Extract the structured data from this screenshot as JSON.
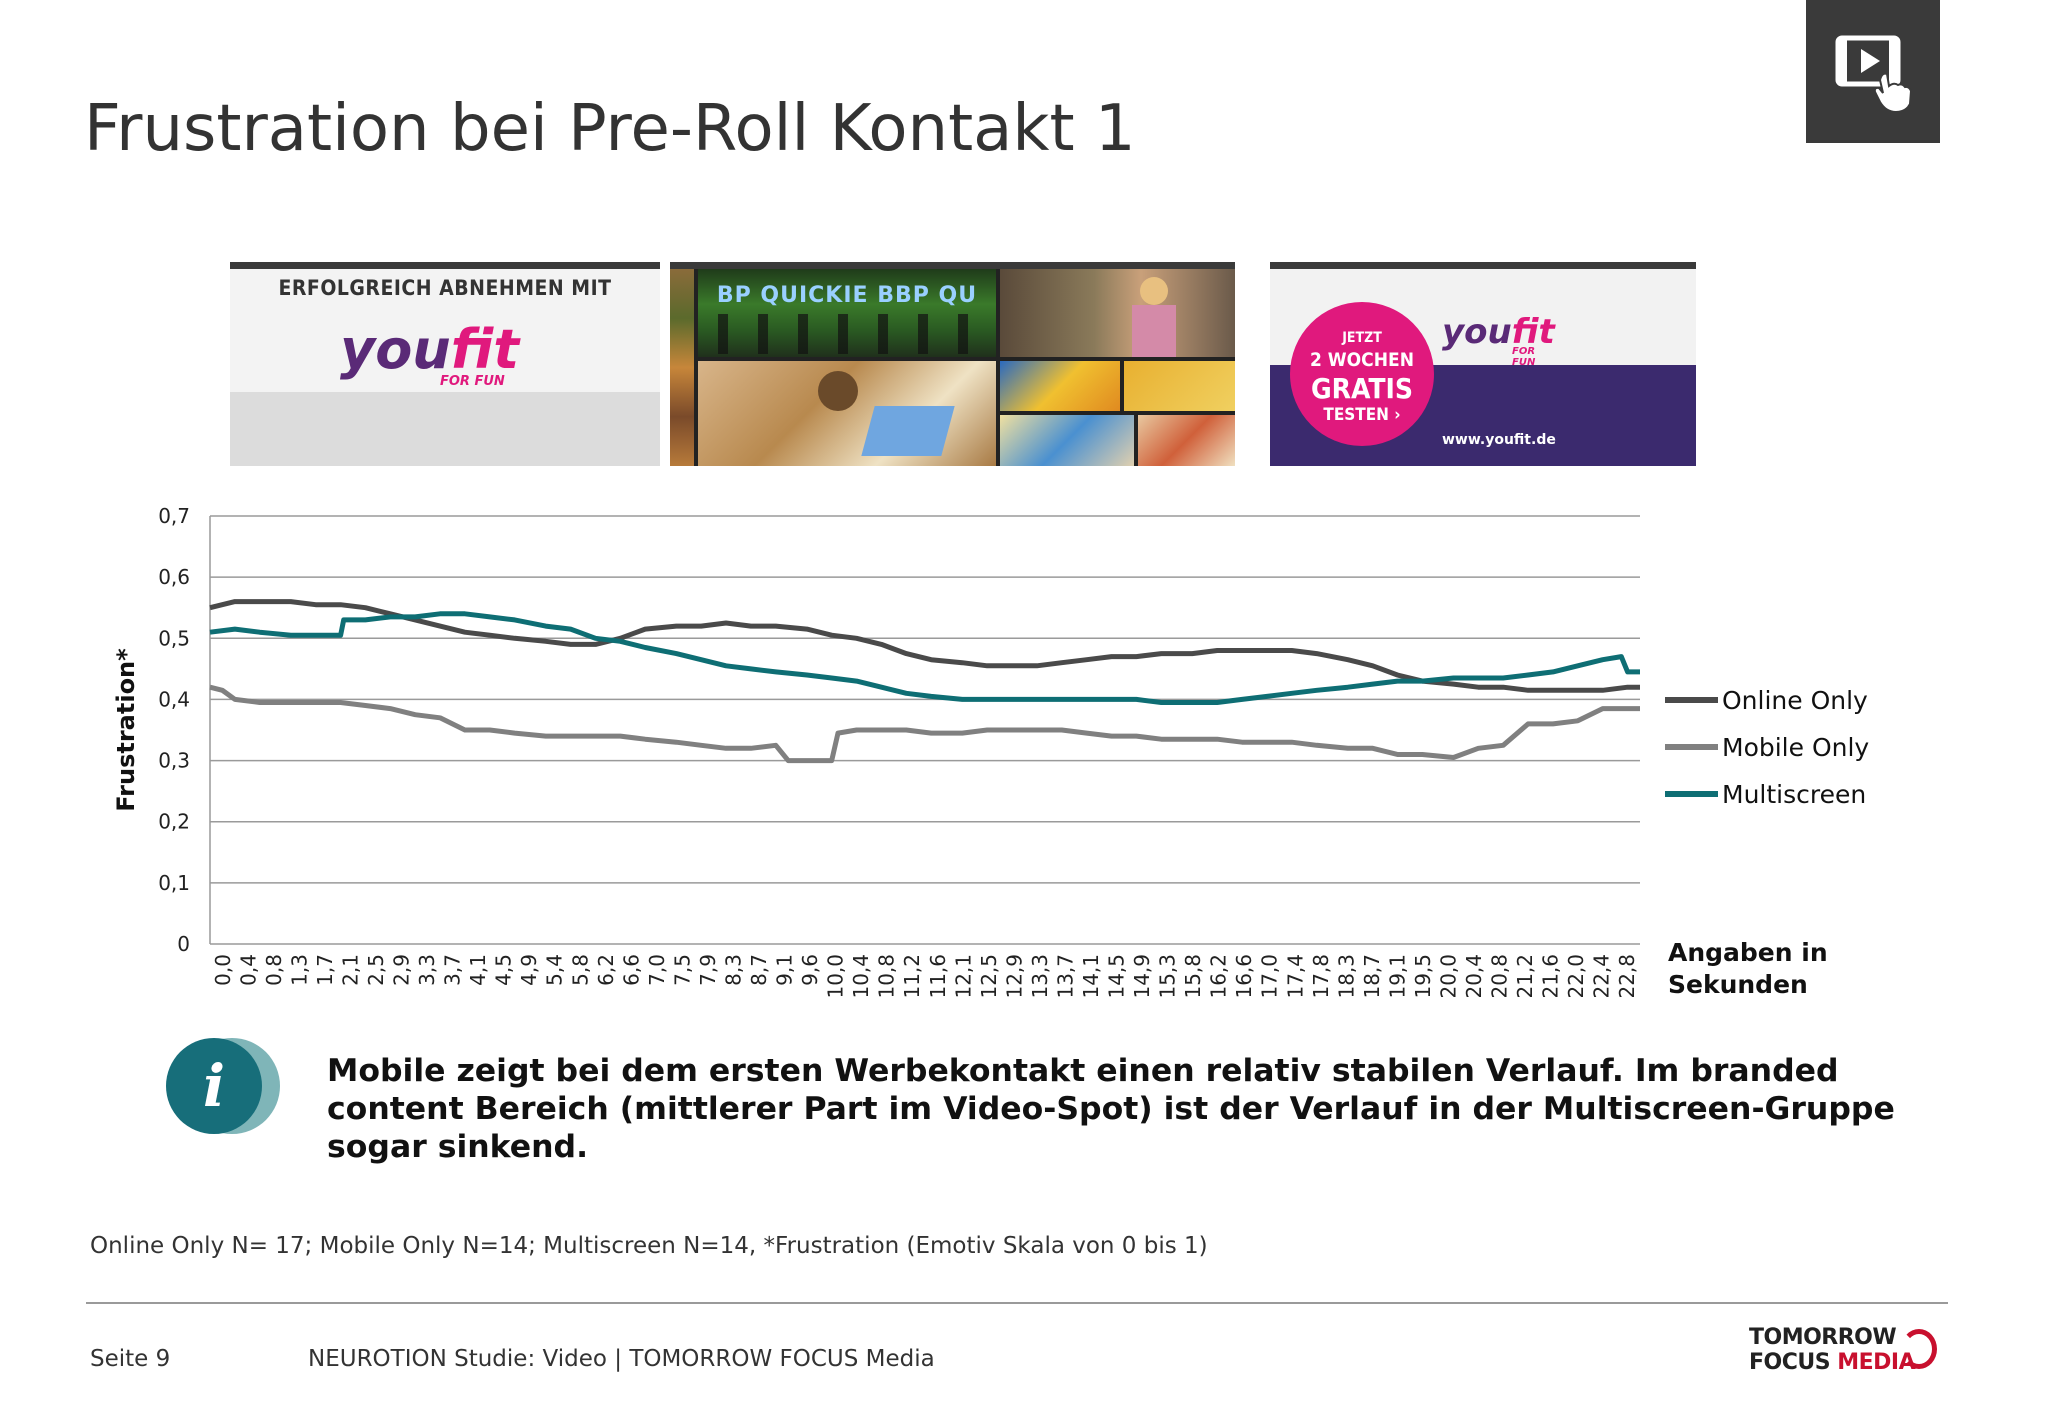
{
  "title": "Frustration bei Pre-Roll Kontakt 1",
  "video_badge_icon": "video-touch-icon",
  "ad_frames": {
    "frame1": {
      "headline": "ERFOLGREICH ABNEHMEN MIT",
      "logo_you": "you",
      "logo_fit": "fit",
      "logo_tagline": "FOR FUN"
    },
    "frame2": {
      "banner_text": "BP QUICKIE BBP QU"
    },
    "frame3": {
      "offer_line1": "JETZT",
      "offer_line2": "2 WOCHEN",
      "offer_line3": "GRATIS",
      "offer_line4": "TESTEN ›",
      "logo_you": "you",
      "logo_fit": "fit",
      "logo_tagline": "FOR FUN",
      "url": "www.youfit.de"
    }
  },
  "chart_data": {
    "type": "line",
    "ylabel": "Frustration*",
    "xlabel": "Angaben in Sekunden",
    "ylim": [
      0,
      0.7
    ],
    "yticks": [
      "0",
      "0,1",
      "0,2",
      "0,3",
      "0,4",
      "0,5",
      "0,6",
      "0,7"
    ],
    "grid": true,
    "legend_position": "right",
    "x_tick_labels": [
      "0,0",
      "0,4",
      "0,8",
      "1,3",
      "1,7",
      "2,1",
      "2,5",
      "2,9",
      "3,3",
      "3,7",
      "4,1",
      "4,5",
      "4,9",
      "5,4",
      "5,8",
      "6,2",
      "6,6",
      "7,0",
      "7,5",
      "7,9",
      "8,3",
      "8,7",
      "9,1",
      "9,6",
      "10,0",
      "10,4",
      "10,8",
      "11,2",
      "11,6",
      "12,1",
      "12,5",
      "12,9",
      "13,3",
      "13,7",
      "14,1",
      "14,5",
      "14,9",
      "15,3",
      "15,8",
      "16,2",
      "16,6",
      "17,0",
      "17,4",
      "17,8",
      "18,3",
      "18,7",
      "19,1",
      "19,5",
      "20,0",
      "20,4",
      "20,8",
      "21,2",
      "21,6",
      "22,0",
      "22,4",
      "22,8"
    ],
    "series": [
      {
        "name": "Online Only",
        "color": "#4a4a4a",
        "x": [
          0.0,
          0.4,
          0.8,
          1.3,
          1.7,
          2.1,
          2.5,
          2.9,
          3.3,
          3.7,
          4.1,
          4.5,
          4.9,
          5.4,
          5.8,
          6.2,
          6.6,
          7.0,
          7.5,
          7.9,
          8.3,
          8.7,
          9.1,
          9.6,
          10.0,
          10.4,
          10.8,
          11.2,
          11.6,
          12.1,
          12.5,
          12.9,
          13.3,
          13.7,
          14.1,
          14.5,
          14.9,
          15.3,
          15.8,
          16.2,
          16.6,
          17.0,
          17.4,
          17.8,
          18.3,
          18.7,
          19.1,
          19.5,
          20.0,
          20.4,
          20.8,
          21.2,
          21.6,
          22.0,
          22.4,
          22.8,
          23.0
        ],
        "y": [
          0.55,
          0.56,
          0.56,
          0.56,
          0.555,
          0.555,
          0.55,
          0.54,
          0.53,
          0.52,
          0.51,
          0.505,
          0.5,
          0.495,
          0.49,
          0.49,
          0.5,
          0.515,
          0.52,
          0.52,
          0.525,
          0.52,
          0.52,
          0.515,
          0.505,
          0.5,
          0.49,
          0.475,
          0.465,
          0.46,
          0.455,
          0.455,
          0.455,
          0.46,
          0.465,
          0.47,
          0.47,
          0.475,
          0.475,
          0.48,
          0.48,
          0.48,
          0.48,
          0.475,
          0.465,
          0.455,
          0.44,
          0.43,
          0.425,
          0.42,
          0.42,
          0.415,
          0.415,
          0.415,
          0.415,
          0.42,
          0.42
        ]
      },
      {
        "name": "Mobile Only",
        "color": "#808080",
        "x": [
          0.0,
          0.2,
          0.4,
          0.8,
          1.3,
          1.7,
          2.1,
          2.5,
          2.9,
          3.3,
          3.7,
          4.1,
          4.5,
          4.9,
          5.4,
          5.8,
          6.2,
          6.6,
          7.0,
          7.5,
          7.9,
          8.3,
          8.7,
          9.1,
          9.3,
          9.6,
          10.0,
          10.1,
          10.4,
          10.8,
          11.2,
          11.6,
          12.1,
          12.5,
          12.9,
          13.3,
          13.7,
          14.1,
          14.5,
          14.9,
          15.3,
          15.8,
          16.2,
          16.6,
          17.0,
          17.4,
          17.8,
          18.3,
          18.7,
          19.1,
          19.5,
          20.0,
          20.4,
          20.8,
          21.2,
          21.6,
          22.0,
          22.4,
          22.8,
          23.0
        ],
        "y": [
          0.42,
          0.415,
          0.4,
          0.395,
          0.395,
          0.395,
          0.395,
          0.39,
          0.385,
          0.375,
          0.37,
          0.35,
          0.35,
          0.345,
          0.34,
          0.34,
          0.34,
          0.34,
          0.335,
          0.33,
          0.325,
          0.32,
          0.32,
          0.325,
          0.3,
          0.3,
          0.3,
          0.345,
          0.35,
          0.35,
          0.35,
          0.345,
          0.345,
          0.35,
          0.35,
          0.35,
          0.35,
          0.345,
          0.34,
          0.34,
          0.335,
          0.335,
          0.335,
          0.33,
          0.33,
          0.33,
          0.325,
          0.32,
          0.32,
          0.31,
          0.31,
          0.305,
          0.32,
          0.325,
          0.36,
          0.36,
          0.365,
          0.385,
          0.385,
          0.385
        ]
      },
      {
        "name": "Multiscreen",
        "color": "#0e6e74",
        "x": [
          0.0,
          0.4,
          0.8,
          1.3,
          1.7,
          2.1,
          2.15,
          2.5,
          2.9,
          3.3,
          3.7,
          4.1,
          4.5,
          4.9,
          5.4,
          5.8,
          6.2,
          6.6,
          7.0,
          7.5,
          7.9,
          8.3,
          8.7,
          9.1,
          9.6,
          10.0,
          10.4,
          10.8,
          11.2,
          11.6,
          12.1,
          12.5,
          12.9,
          13.3,
          13.7,
          14.1,
          14.5,
          14.9,
          15.3,
          15.8,
          16.2,
          16.6,
          17.0,
          17.4,
          17.8,
          18.3,
          18.7,
          19.1,
          19.5,
          20.0,
          20.4,
          20.8,
          21.2,
          21.6,
          22.0,
          22.4,
          22.7,
          22.8,
          23.0
        ],
        "y": [
          0.51,
          0.515,
          0.51,
          0.505,
          0.505,
          0.505,
          0.53,
          0.53,
          0.535,
          0.535,
          0.54,
          0.54,
          0.535,
          0.53,
          0.52,
          0.515,
          0.5,
          0.495,
          0.485,
          0.475,
          0.465,
          0.455,
          0.45,
          0.445,
          0.44,
          0.435,
          0.43,
          0.42,
          0.41,
          0.405,
          0.4,
          0.4,
          0.4,
          0.4,
          0.4,
          0.4,
          0.4,
          0.4,
          0.395,
          0.395,
          0.395,
          0.4,
          0.405,
          0.41,
          0.415,
          0.42,
          0.425,
          0.43,
          0.43,
          0.435,
          0.435,
          0.435,
          0.44,
          0.445,
          0.455,
          0.465,
          0.47,
          0.445,
          0.445
        ]
      }
    ]
  },
  "info_icon": "info-icon",
  "note": "Mobile zeigt bei dem  ersten Werbekontakt einen relativ stabilen Verlauf. Im branded content Bereich (mittlerer Part im Video-Spot) ist der Verlauf in der Multiscreen-Gruppe sogar sinkend.",
  "footnote": "Online Only N= 17; Mobile Only N=14; Multiscreen N=14, *Frustration (Emotiv Skala von 0 bis 1)",
  "footer": {
    "page": "Seite 9",
    "study": "NEUROTION Studie: Video | TOMORROW FOCUS Media",
    "brand_line1": "TOMORROW",
    "brand_line2a": "FOCUS ",
    "brand_line2b": "MEDIA"
  }
}
